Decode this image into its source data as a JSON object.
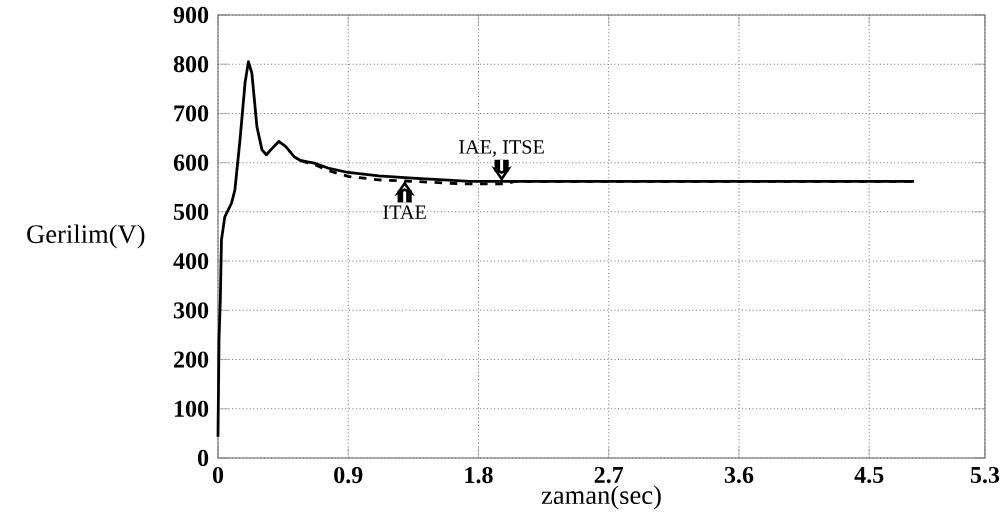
{
  "chart_data": {
    "type": "line",
    "xlabel": "zaman(sec)",
    "ylabel": "Gerilim(V)",
    "xlim": [
      0,
      5.3
    ],
    "ylim": [
      0,
      900
    ],
    "xticks": [
      0,
      0.9,
      1.8,
      2.7,
      3.6,
      4.5,
      5.3
    ],
    "yticks": [
      0,
      100,
      200,
      300,
      400,
      500,
      600,
      700,
      800,
      900
    ],
    "grid": true,
    "series": [
      {
        "color": "#000000",
        "line_style": "solid",
        "x": [
          0,
          0.007,
          0.016,
          0.024,
          0.047,
          0.094,
          0.117,
          0.152,
          0.187,
          0.21,
          0.234,
          0.269,
          0.304,
          0.334,
          0.374,
          0.42,
          0.467,
          0.526,
          0.573,
          0.666,
          0.76,
          0.9,
          1.11,
          1.37,
          1.5,
          1.74,
          2.2,
          3.0,
          4.0,
          4.81
        ],
        "values": [
          43,
          240,
          321,
          443,
          490,
          518,
          545,
          646,
          762,
          805,
          782,
          673,
          626,
          616,
          629,
          643,
          633,
          612,
          604,
          599,
          589,
          580,
          573,
          568,
          566,
          562,
          562,
          562,
          562,
          562
        ]
      },
      {
        "color": "#000000",
        "line_style": "dashed",
        "x": [
          0.573,
          0.666,
          0.76,
          0.9,
          1.11,
          1.34,
          1.68,
          1.99,
          2.05,
          3.0,
          4.0,
          4.81
        ],
        "values": [
          604,
          596,
          584,
          572,
          565,
          562,
          557,
          557,
          562,
          562,
          562,
          562
        ]
      }
    ],
    "annotations": [
      {
        "text": "IAE, ITSE",
        "x": 1.96,
        "y": 562
      },
      {
        "text": "ITAE",
        "x": 1.29,
        "y": 563
      }
    ]
  }
}
